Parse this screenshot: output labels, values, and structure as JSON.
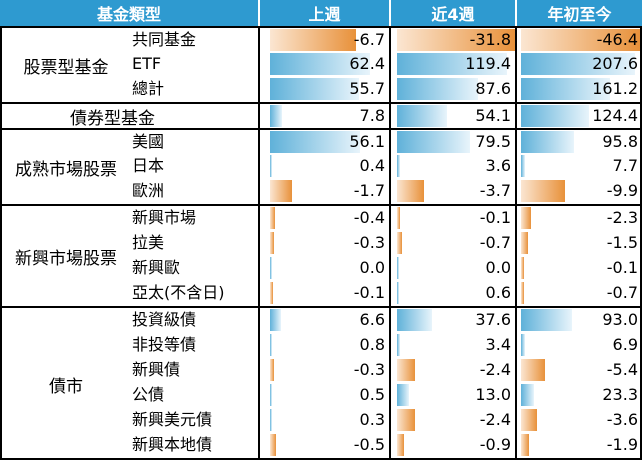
{
  "header": {
    "category_label": "基金類型",
    "columns": [
      "上週",
      "近4週",
      "年初至今"
    ]
  },
  "groups": [
    {
      "label": "股票型基金",
      "rows": [
        {
          "name": "共同基金",
          "values": [
            "-6.7",
            "-31.8",
            "-46.4"
          ]
        },
        {
          "name": "ETF",
          "values": [
            "62.4",
            "119.4",
            "207.6"
          ]
        },
        {
          "name": "總計",
          "values": [
            "55.7",
            "87.6",
            "161.2"
          ]
        }
      ]
    },
    {
      "label": "債券型基金",
      "rows": [
        {
          "name": "",
          "values": [
            "7.8",
            "54.1",
            "124.4"
          ]
        }
      ]
    },
    {
      "label": "成熟市場股票",
      "rows": [
        {
          "name": "美國",
          "values": [
            "56.1",
            "79.5",
            "95.8"
          ]
        },
        {
          "name": "日本",
          "values": [
            "0.4",
            "3.6",
            "7.7"
          ]
        },
        {
          "name": "歐洲",
          "values": [
            "-1.7",
            "-3.7",
            "-9.9"
          ]
        }
      ]
    },
    {
      "label": "新興市場股票",
      "rows": [
        {
          "name": "新興市場",
          "values": [
            "-0.4",
            "-0.1",
            "-2.3"
          ]
        },
        {
          "name": "拉美",
          "values": [
            "-0.3",
            "-0.7",
            "-1.5"
          ]
        },
        {
          "name": "新興歐",
          "values": [
            "0.0",
            "0.0",
            "-0.1"
          ]
        },
        {
          "name": "亞太(不含日)",
          "values": [
            "-0.1",
            "0.6",
            "-0.7"
          ]
        }
      ]
    },
    {
      "label": "債市",
      "rows": [
        {
          "name": "投資級債",
          "values": [
            "6.6",
            "37.6",
            "93.0"
          ]
        },
        {
          "name": "非投等債",
          "values": [
            "0.8",
            "3.4",
            "6.9"
          ]
        },
        {
          "name": "新興債",
          "values": [
            "-0.3",
            "-2.4",
            "-5.4"
          ]
        },
        {
          "name": "公債",
          "values": [
            "0.5",
            "13.0",
            "23.3"
          ]
        },
        {
          "name": "新興美元債",
          "values": [
            "0.3",
            "-2.4",
            "-3.6"
          ]
        },
        {
          "name": "新興本地債",
          "values": [
            "-0.5",
            "-0.9",
            "-1.9"
          ]
        }
      ]
    }
  ],
  "colors": {
    "header_bg": "#2e9ad0",
    "positive_bar": "#5fb1d9",
    "negative_bar": "#e8913a"
  }
}
